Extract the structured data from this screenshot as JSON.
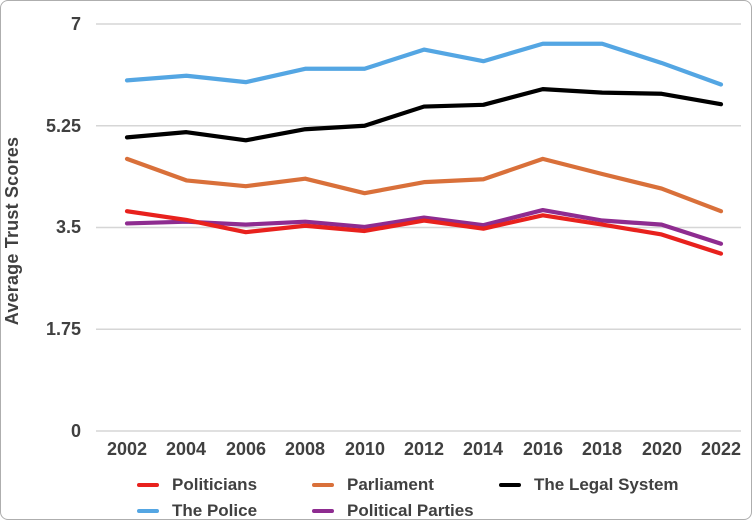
{
  "figure": {
    "background": "#ffffff",
    "border_color": "#aeaeae",
    "text_color": "#404040",
    "gridline_color": "#d6d6d6"
  },
  "chart_data": {
    "type": "line",
    "title": "",
    "xlabel": "",
    "ylabel": "Average Trust Scores",
    "ylim": [
      0,
      7
    ],
    "yticks": [
      0,
      1.75,
      3.5,
      5.25,
      7
    ],
    "ytick_labels": [
      "0",
      "1.75",
      "3.5",
      "5.25",
      "7"
    ],
    "x": [
      2002,
      2004,
      2006,
      2008,
      2010,
      2012,
      2014,
      2016,
      2018,
      2020,
      2022
    ],
    "grid": "horizontal-only",
    "legend_position": "bottom",
    "series": [
      {
        "name": "Politicians",
        "color": "#e8211d",
        "values": [
          3.78,
          3.63,
          3.42,
          3.53,
          3.44,
          3.62,
          3.48,
          3.71,
          3.55,
          3.38,
          3.05
        ]
      },
      {
        "name": "Parliament",
        "color": "#d9703a",
        "values": [
          4.68,
          4.31,
          4.21,
          4.34,
          4.09,
          4.28,
          4.33,
          4.68,
          4.42,
          4.17,
          3.78
        ]
      },
      {
        "name": "The Legal System",
        "color": "#000000",
        "values": [
          5.05,
          5.14,
          5.0,
          5.19,
          5.25,
          5.58,
          5.61,
          5.88,
          5.82,
          5.8,
          5.62
        ]
      },
      {
        "name": "The Police",
        "color": "#54a6e3",
        "values": [
          6.03,
          6.11,
          6.0,
          6.23,
          6.23,
          6.56,
          6.36,
          6.66,
          6.66,
          6.33,
          5.96
        ]
      },
      {
        "name": "Political Parties",
        "color": "#8e2c90",
        "values": [
          3.57,
          3.6,
          3.55,
          3.6,
          3.51,
          3.67,
          3.54,
          3.8,
          3.62,
          3.55,
          3.22
        ]
      }
    ]
  }
}
